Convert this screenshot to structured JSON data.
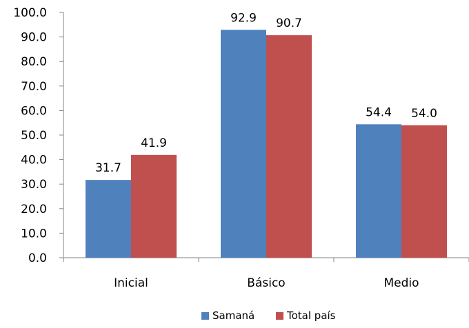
{
  "chart_data": {
    "type": "bar",
    "categories": [
      "Inicial",
      "Básico",
      "Medio"
    ],
    "series": [
      {
        "name": "Samaná",
        "values": [
          31.7,
          92.9,
          54.4
        ],
        "labels": [
          "31.7",
          "92.9",
          "54.4"
        ],
        "color": "#4F81BD"
      },
      {
        "name": "Total país",
        "values": [
          41.9,
          90.7,
          54.0
        ],
        "labels": [
          "41.9",
          "90.7",
          "54.0"
        ],
        "color": "#C0504D"
      }
    ],
    "ylim": [
      0,
      100
    ],
    "yticks": [
      "0.0",
      "10.0",
      "20.0",
      "30.0",
      "40.0",
      "50.0",
      "60.0",
      "70.0",
      "80.0",
      "90.0",
      "100.0"
    ],
    "grid": false,
    "legend": "bottom"
  }
}
